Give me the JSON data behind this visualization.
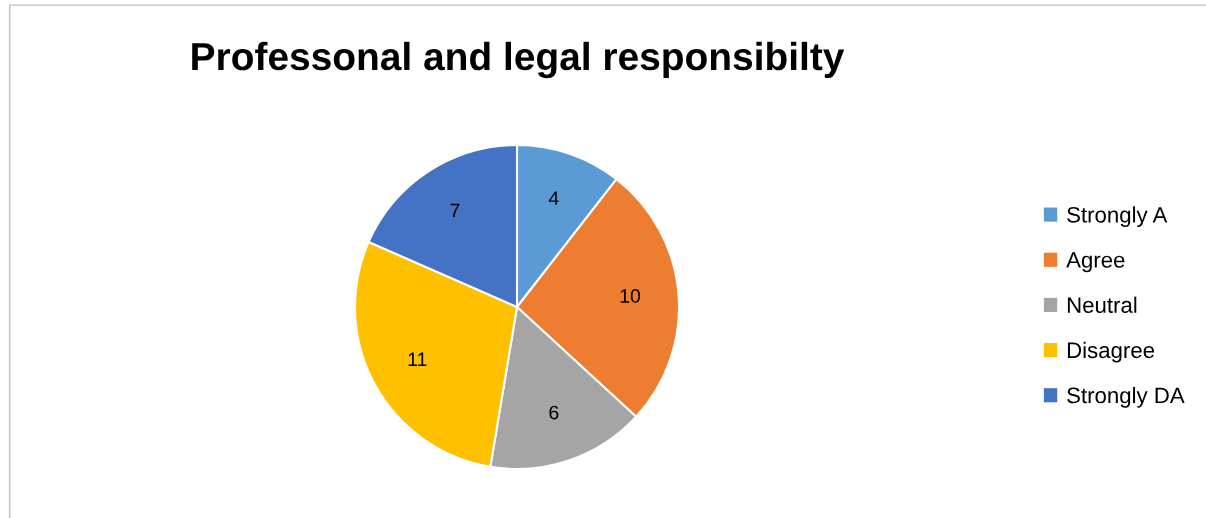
{
  "chart_data": {
    "type": "pie",
    "title": "Professonal and legal responsibilty",
    "categories": [
      "Strongly A",
      "Agree",
      "Neutral",
      "Disagree",
      "Strongly DA"
    ],
    "values": [
      4,
      10,
      6,
      11,
      7
    ],
    "colors": [
      "#5b9bd5",
      "#ed7d31",
      "#a5a5a5",
      "#ffc000",
      "#4472c4"
    ],
    "data_labels": true,
    "legend": "right"
  }
}
